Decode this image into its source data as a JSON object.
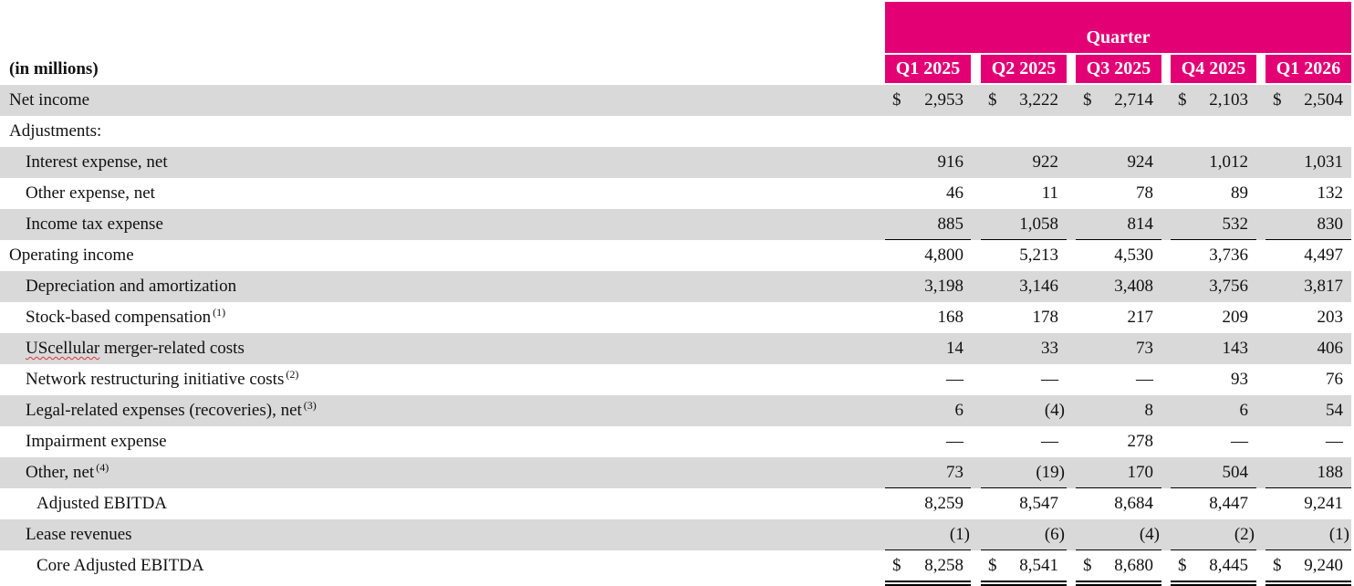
{
  "header": {
    "group_label": "Quarter",
    "units_label": "(in millions)",
    "columns": [
      "Q1 2025",
      "Q2 2025",
      "Q3 2025",
      "Q4 2025",
      "Q1 2026"
    ]
  },
  "brand_color": "#e20074",
  "rows": [
    {
      "label": "Net income",
      "note": "",
      "values": [
        "2,953",
        "3,222",
        "2,714",
        "2,103",
        "2,504"
      ]
    },
    {
      "label": "Adjustments:",
      "note": "",
      "values": [
        "",
        "",
        "",
        "",
        ""
      ]
    },
    {
      "label": "Interest expense, net",
      "note": "",
      "values": [
        "916",
        "922",
        "924",
        "1,012",
        "1,031"
      ]
    },
    {
      "label": "Other expense, net",
      "note": "",
      "values": [
        "46",
        "11",
        "78",
        "89",
        "132"
      ]
    },
    {
      "label": "Income tax expense",
      "note": "",
      "values": [
        "885",
        "1,058",
        "814",
        "532",
        "830"
      ]
    },
    {
      "label": "Operating income",
      "note": "",
      "values": [
        "4,800",
        "5,213",
        "4,530",
        "3,736",
        "4,497"
      ]
    },
    {
      "label": "Depreciation and amortization",
      "note": "",
      "values": [
        "3,198",
        "3,146",
        "3,408",
        "3,756",
        "3,817"
      ]
    },
    {
      "label": "Stock-based compensation",
      "note": "(1)",
      "values": [
        "168",
        "178",
        "217",
        "209",
        "203"
      ]
    },
    {
      "label": "UScellular merger-related costs",
      "note": "",
      "values": [
        "14",
        "33",
        "73",
        "143",
        "406"
      ]
    },
    {
      "label": "Network restructuring initiative costs",
      "note": "(2)",
      "values": [
        "—",
        "—",
        "—",
        "93",
        "76"
      ]
    },
    {
      "label": "Legal-related expenses (recoveries), net",
      "note": "(3)",
      "values": [
        "6",
        "(4)",
        "8",
        "6",
        "54"
      ]
    },
    {
      "label": "Impairment expense",
      "note": "",
      "values": [
        "—",
        "—",
        "278",
        "—",
        "—"
      ]
    },
    {
      "label": "Other, net",
      "note": "(4)",
      "values": [
        "73",
        "(19)",
        "170",
        "504",
        "188"
      ]
    },
    {
      "label": "Adjusted EBITDA",
      "note": "",
      "values": [
        "8,259",
        "8,547",
        "8,684",
        "8,447",
        "9,241"
      ]
    },
    {
      "label": "Lease revenues",
      "note": "",
      "values": [
        "(1)",
        "(6)",
        "(4)",
        "(2)",
        "(1)"
      ]
    },
    {
      "label": "Core Adjusted EBITDA",
      "note": "",
      "values": [
        "8,258",
        "8,541",
        "8,680",
        "8,445",
        "9,240"
      ]
    }
  ],
  "currency_symbol": "$"
}
